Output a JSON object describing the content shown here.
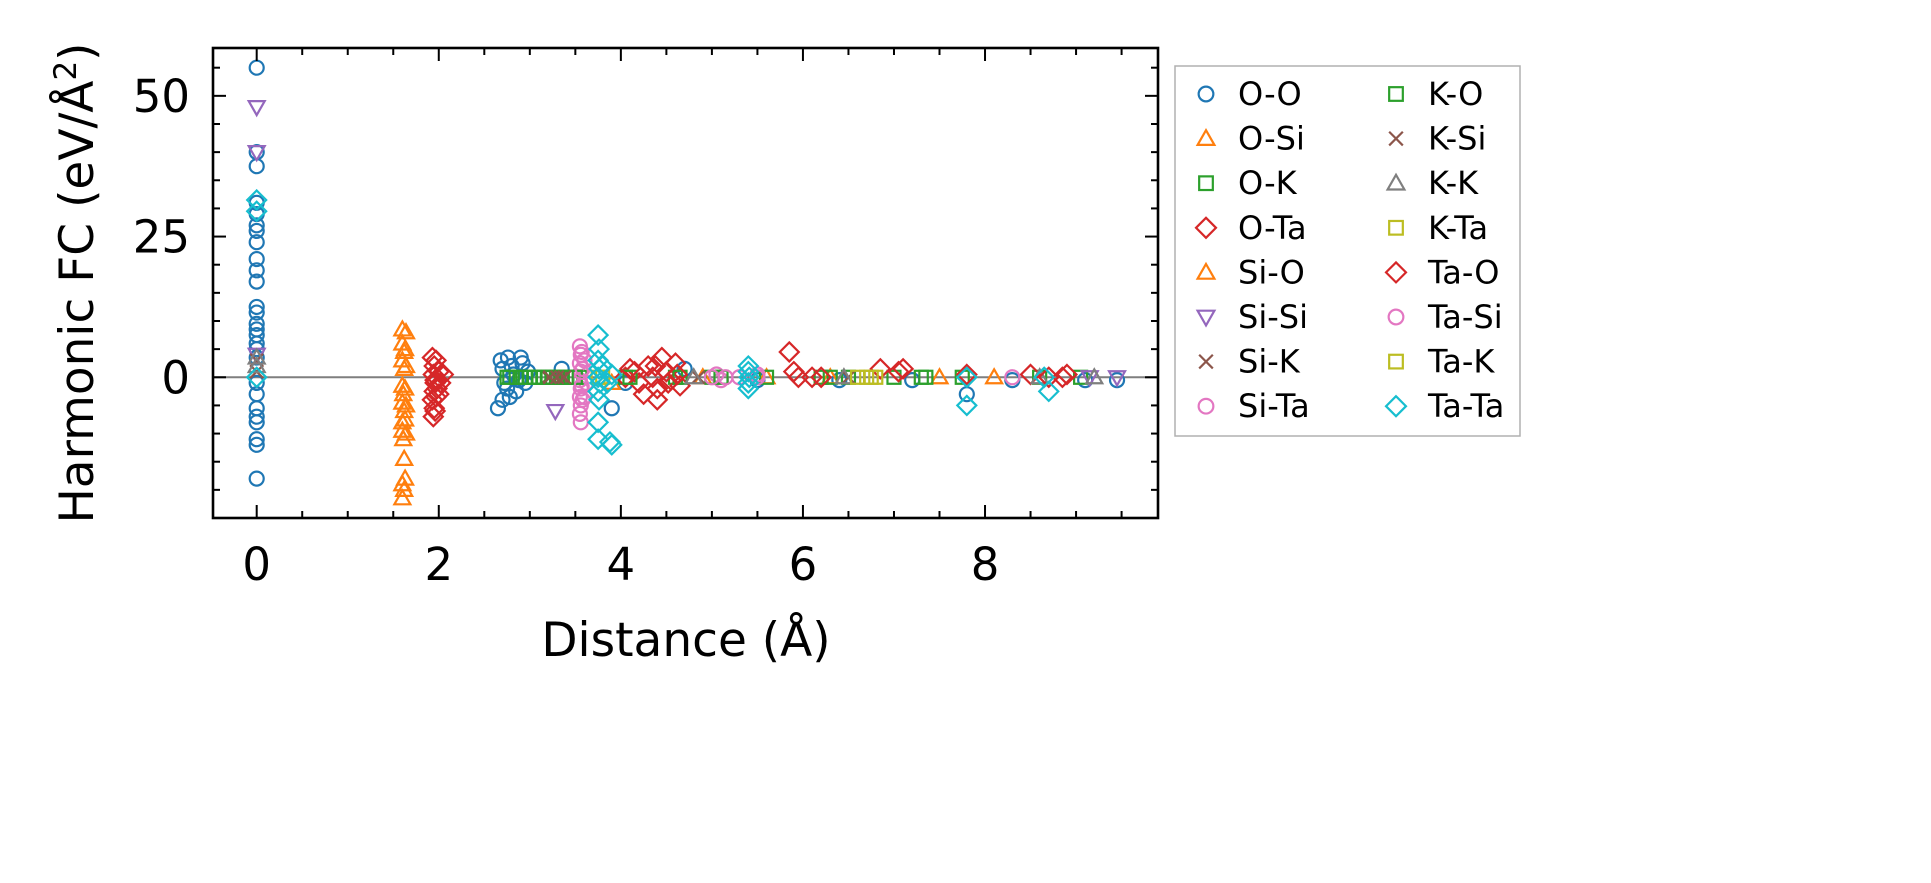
{
  "chart_data": {
    "type": "scatter",
    "title": "",
    "xlabel": "Distance (Å)",
    "ylabel": "Harmonic FC (eV/Å²)",
    "ylabel_main": "Harmonic FC (eV/Å",
    "ylabel_sup": "2",
    "ylabel_close": ")",
    "xlim": [
      -0.48,
      9.9
    ],
    "ylim": [
      -25,
      58.5
    ],
    "xticks": [
      0,
      2,
      4,
      6,
      8
    ],
    "xtick_labels": [
      "0",
      "2",
      "4",
      "6",
      "8"
    ],
    "yticks": [
      0,
      25,
      50
    ],
    "ytick_labels": [
      "0",
      "25",
      "50"
    ],
    "grid": false,
    "zero_line": {
      "y": 0,
      "color": "#7f7f7f"
    },
    "legend": {
      "placement": "outside-right",
      "columns": 2
    },
    "series": [
      {
        "name": "O-O",
        "marker": "circle",
        "color": "#1f77b4",
        "points": [
          [
            0,
            55
          ],
          [
            0,
            40
          ],
          [
            0,
            37.5
          ],
          [
            0,
            31
          ],
          [
            0,
            29
          ],
          [
            0,
            27
          ],
          [
            0,
            26
          ],
          [
            0,
            24
          ],
          [
            0,
            21
          ],
          [
            0,
            19
          ],
          [
            0,
            17
          ],
          [
            0,
            12.5
          ],
          [
            0,
            11.5
          ],
          [
            0,
            9.5
          ],
          [
            0,
            8.5
          ],
          [
            0,
            7.5
          ],
          [
            0,
            6
          ],
          [
            0,
            5
          ],
          [
            0,
            3.5
          ],
          [
            0,
            -1
          ],
          [
            0,
            -3
          ],
          [
            0,
            -5.5
          ],
          [
            0,
            -7
          ],
          [
            0,
            -8
          ],
          [
            0,
            -11
          ],
          [
            0,
            -12
          ],
          [
            0,
            -18
          ],
          [
            2.68,
            3
          ],
          [
            2.7,
            1.5
          ],
          [
            2.72,
            -1
          ],
          [
            2.75,
            -2
          ],
          [
            2.78,
            -3.5
          ],
          [
            2.8,
            2
          ],
          [
            2.82,
            0.5
          ],
          [
            2.85,
            -2.5
          ],
          [
            2.65,
            -5.5
          ],
          [
            2.9,
            3.5
          ],
          [
            2.92,
            2.5
          ],
          [
            2.95,
            -1
          ],
          [
            2.98,
            1
          ],
          [
            2.7,
            -4
          ],
          [
            2.88,
            -0.5
          ],
          [
            2.76,
            3.5
          ],
          [
            3.35,
            1.5
          ],
          [
            3.9,
            -5.5
          ],
          [
            4.05,
            -1
          ],
          [
            4.7,
            1.5
          ],
          [
            5.5,
            -0.5
          ],
          [
            6.4,
            -0.5
          ],
          [
            7.2,
            -0.5
          ],
          [
            7.8,
            -3
          ],
          [
            8.3,
            -0.5
          ],
          [
            9.1,
            -0.5
          ],
          [
            9.45,
            -0.5
          ]
        ]
      },
      {
        "name": "O-Si",
        "marker": "triangle-up",
        "color": "#ff7f0e",
        "points": [
          [
            1.6,
            8.5
          ],
          [
            1.6,
            6
          ],
          [
            1.62,
            4.5
          ],
          [
            1.6,
            3
          ],
          [
            1.62,
            1.5
          ],
          [
            1.6,
            -1.5
          ],
          [
            1.61,
            -3
          ],
          [
            1.6,
            -4.5
          ],
          [
            1.62,
            -6
          ],
          [
            1.6,
            -8
          ],
          [
            1.6,
            -9.5
          ],
          [
            1.61,
            -11
          ],
          [
            1.62,
            -14.5
          ],
          [
            1.6,
            -19
          ],
          [
            1.62,
            -20
          ],
          [
            1.6,
            -21.5
          ],
          [
            3.9,
            -1
          ],
          [
            4.9,
            0
          ],
          [
            5.6,
            0
          ],
          [
            6.3,
            0
          ],
          [
            7.5,
            0
          ],
          [
            8.1,
            0
          ]
        ]
      },
      {
        "name": "O-K",
        "marker": "square",
        "color": "#2ca02c",
        "points": [
          [
            2.75,
            0
          ],
          [
            2.85,
            0
          ],
          [
            2.95,
            0
          ],
          [
            3.05,
            0
          ],
          [
            3.15,
            0
          ],
          [
            3.25,
            0
          ],
          [
            3.35,
            0
          ],
          [
            3.45,
            0
          ],
          [
            3.55,
            0
          ],
          [
            4.05,
            0
          ],
          [
            4.6,
            0
          ],
          [
            5.0,
            0
          ],
          [
            5.6,
            0
          ],
          [
            6.2,
            0
          ],
          [
            6.5,
            0
          ],
          [
            7.0,
            0
          ],
          [
            7.35,
            0
          ],
          [
            7.75,
            0
          ],
          [
            8.6,
            0
          ],
          [
            9.05,
            0
          ]
        ]
      },
      {
        "name": "O-Ta",
        "marker": "diamond",
        "color": "#d62728",
        "points": [
          [
            1.93,
            3.5
          ],
          [
            1.95,
            2
          ],
          [
            1.94,
            0.5
          ],
          [
            1.96,
            -1
          ],
          [
            1.95,
            -2.5
          ],
          [
            1.93,
            -4
          ],
          [
            1.95,
            -5.5
          ],
          [
            1.94,
            -7
          ],
          [
            2.0,
            1
          ],
          [
            2.02,
            -1
          ],
          [
            1.98,
            -2
          ],
          [
            2.05,
            0.5
          ],
          [
            2.0,
            -3
          ],
          [
            4.05,
            0
          ],
          [
            4.15,
            1
          ],
          [
            4.2,
            -1
          ],
          [
            4.3,
            2
          ],
          [
            4.35,
            0
          ],
          [
            4.4,
            -2
          ],
          [
            4.45,
            3.5
          ],
          [
            4.5,
            1
          ],
          [
            4.55,
            -0.5
          ],
          [
            4.6,
            2.5
          ],
          [
            4.65,
            -1.5
          ],
          [
            4.4,
            -4
          ],
          [
            4.25,
            -3
          ],
          [
            5.85,
            4.5
          ],
          [
            5.95,
            0
          ],
          [
            6.1,
            0
          ],
          [
            6.85,
            1.5
          ],
          [
            7.05,
            1
          ],
          [
            7.8,
            0.5
          ],
          [
            8.5,
            0.5
          ],
          [
            8.9,
            0.5
          ]
        ]
      },
      {
        "name": "Si-O",
        "marker": "triangle-up",
        "color": "#ff7f0e",
        "points": [
          [
            1.64,
            8
          ],
          [
            1.63,
            5
          ],
          [
            1.64,
            2
          ],
          [
            1.63,
            -2
          ],
          [
            1.64,
            -5
          ],
          [
            1.63,
            -7.5
          ],
          [
            1.64,
            -10
          ],
          [
            1.63,
            -18
          ]
        ]
      },
      {
        "name": "Si-Si",
        "marker": "triangle-down",
        "color": "#9467bd",
        "points": [
          [
            0,
            48
          ],
          [
            0,
            40
          ],
          [
            0,
            4
          ],
          [
            3.28,
            -6
          ],
          [
            9.15,
            0
          ],
          [
            9.45,
            0
          ]
        ]
      },
      {
        "name": "Si-K",
        "marker": "x",
        "color": "#8c564b",
        "points": [
          [
            0,
            3
          ],
          [
            0,
            1
          ],
          [
            3.2,
            0
          ],
          [
            3.28,
            0
          ],
          [
            3.35,
            0
          ]
        ]
      },
      {
        "name": "Si-Ta",
        "marker": "circle",
        "color": "#e377c2",
        "points": [
          [
            3.55,
            5.5
          ],
          [
            3.56,
            4
          ],
          [
            3.55,
            2.5
          ],
          [
            3.56,
            1
          ],
          [
            3.55,
            -0.5
          ],
          [
            3.56,
            -2
          ],
          [
            3.55,
            -3.5
          ],
          [
            3.56,
            -5
          ],
          [
            3.55,
            -6.5
          ],
          [
            3.56,
            -8
          ],
          [
            3.6,
            3
          ],
          [
            3.62,
            -1
          ],
          [
            3.6,
            -3.5
          ],
          [
            5.05,
            0.5
          ],
          [
            5.1,
            -0.5
          ],
          [
            5.5,
            0
          ],
          [
            5.3,
            0
          ],
          [
            8.3,
            0
          ]
        ]
      },
      {
        "name": "K-O",
        "marker": "square",
        "color": "#2ca02c",
        "points": [
          [
            2.78,
            0
          ],
          [
            2.9,
            0
          ],
          [
            3.0,
            0
          ],
          [
            3.1,
            0
          ],
          [
            3.2,
            0
          ],
          [
            3.3,
            0
          ],
          [
            3.4,
            0
          ],
          [
            3.5,
            0
          ],
          [
            4.1,
            0
          ],
          [
            4.65,
            0
          ],
          [
            5.1,
            0
          ],
          [
            6.3,
            0
          ],
          [
            7.3,
            0
          ]
        ]
      },
      {
        "name": "K-Si",
        "marker": "x",
        "color": "#8c564b",
        "points": [
          [
            3.22,
            0
          ],
          [
            3.3,
            0
          ],
          [
            3.38,
            0
          ],
          [
            4.85,
            0
          ],
          [
            6.5,
            0
          ]
        ]
      },
      {
        "name": "K-K",
        "marker": "triangle-up",
        "color": "#7f7f7f",
        "points": [
          [
            0,
            3.5
          ],
          [
            0,
            2
          ],
          [
            4.8,
            0
          ],
          [
            6.45,
            0
          ],
          [
            8.6,
            0
          ],
          [
            9.2,
            0
          ]
        ]
      },
      {
        "name": "K-Ta",
        "marker": "square",
        "color": "#bcbd22",
        "points": [
          [
            3.75,
            0
          ],
          [
            6.6,
            0
          ],
          [
            6.7,
            0
          ],
          [
            6.8,
            0
          ]
        ]
      },
      {
        "name": "Ta-O",
        "marker": "diamond",
        "color": "#d62728",
        "points": [
          [
            1.97,
            3
          ],
          [
            1.96,
            -0.5
          ],
          [
            1.97,
            -3.5
          ],
          [
            1.96,
            -6
          ],
          [
            4.1,
            1.5
          ],
          [
            4.38,
            2
          ],
          [
            4.52,
            -1
          ],
          [
            4.62,
            0.5
          ],
          [
            5.9,
            1
          ],
          [
            6.2,
            0
          ],
          [
            7.1,
            1.5
          ],
          [
            8.7,
            0
          ],
          [
            8.85,
            0
          ]
        ]
      },
      {
        "name": "Ta-Si",
        "marker": "circle",
        "color": "#e377c2",
        "points": [
          [
            3.57,
            4.5
          ],
          [
            3.58,
            1.5
          ],
          [
            3.57,
            -1.5
          ],
          [
            3.58,
            -4
          ],
          [
            5.0,
            0
          ],
          [
            5.15,
            0
          ],
          [
            5.5,
            0.5
          ]
        ]
      },
      {
        "name": "Ta-K",
        "marker": "square",
        "color": "#bcbd22",
        "points": [
          [
            3.8,
            0
          ],
          [
            6.75,
            0
          ]
        ]
      },
      {
        "name": "Ta-Ta",
        "marker": "diamond",
        "color": "#17becf",
        "points": [
          [
            0,
            31.5
          ],
          [
            0,
            29.5
          ],
          [
            0,
            0
          ],
          [
            3.75,
            7.5
          ],
          [
            3.76,
            5
          ],
          [
            3.75,
            3
          ],
          [
            3.76,
            1.5
          ],
          [
            3.75,
            0
          ],
          [
            3.77,
            -1
          ],
          [
            3.75,
            -2.5
          ],
          [
            3.76,
            -4
          ],
          [
            3.75,
            -8
          ],
          [
            3.75,
            -11
          ],
          [
            3.9,
            -12
          ],
          [
            3.88,
            -11.5
          ],
          [
            3.8,
            2
          ],
          [
            3.85,
            -1
          ],
          [
            3.9,
            0.5
          ],
          [
            5.4,
            2
          ],
          [
            5.4,
            1
          ],
          [
            5.41,
            0
          ],
          [
            5.4,
            -1
          ],
          [
            5.4,
            -2
          ],
          [
            7.8,
            0
          ],
          [
            7.8,
            -5
          ],
          [
            8.65,
            0
          ],
          [
            8.7,
            -2.5
          ]
        ]
      }
    ]
  }
}
